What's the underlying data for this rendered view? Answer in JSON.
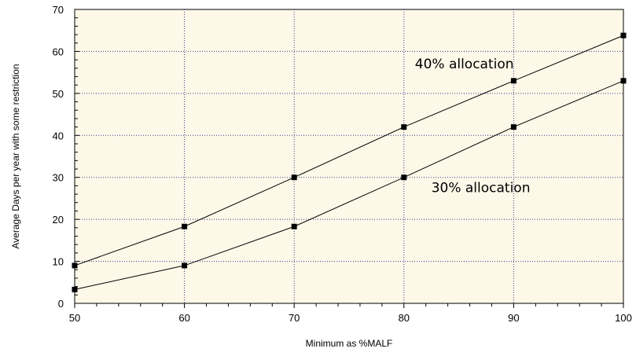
{
  "chart_data": {
    "type": "line",
    "xlabel": "Minimum as %MALF",
    "ylabel": "Average Days per year with some restriction",
    "xlim": [
      50,
      100
    ],
    "ylim": [
      0,
      70
    ],
    "x_ticks": [
      50,
      60,
      70,
      80,
      90,
      100
    ],
    "y_ticks": [
      0,
      10,
      20,
      30,
      40,
      50,
      60,
      70
    ],
    "grid": true,
    "x": [
      50,
      60,
      70,
      80,
      90,
      100
    ],
    "series": [
      {
        "name": "",
        "values": [
          9,
          18.3,
          30,
          42,
          53,
          63.8
        ]
      },
      {
        "name": "",
        "values": [
          3.3,
          9,
          18.3,
          30,
          42,
          53
        ]
      }
    ],
    "annotations": [
      {
        "text": "40% allocation",
        "x": 81,
        "y": 56
      },
      {
        "text": "30% allocation",
        "x": 82.5,
        "y": 26.5
      }
    ],
    "colors": {
      "plot_background": "#fdf8e8",
      "grid": "#3a3a8c",
      "line": "#000000",
      "marker": "#000000"
    }
  }
}
